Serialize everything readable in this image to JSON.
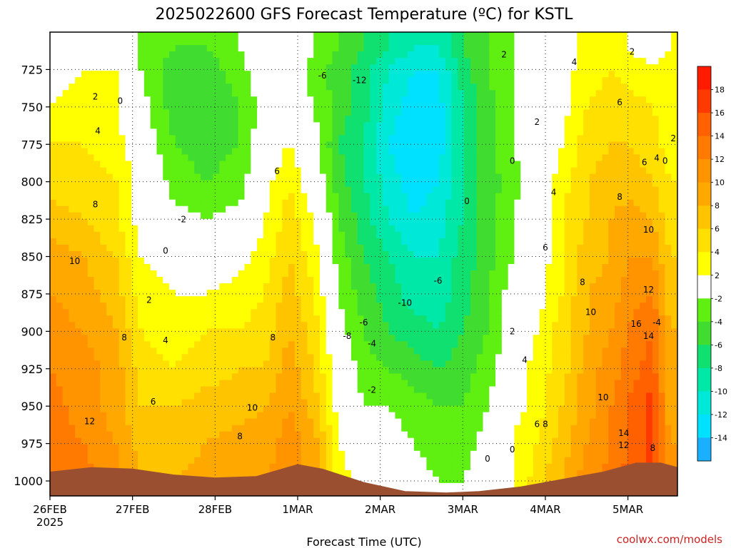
{
  "title": "2025022600 GFS Forecast Temperature (ºC) for KSTL",
  "xlabel": "Forecast Time (UTC)",
  "credit": "coolwx.com/models",
  "chart_data": {
    "type": "heatmap",
    "title": "2025022600 GFS Forecast Temperature (ºC) for KSTL",
    "xlabel": "Forecast Time (UTC)",
    "ylabel": "",
    "x_ticks": [
      "26FEB",
      "27FEB",
      "28FEB",
      "1MAR",
      "2MAR",
      "3MAR",
      "4MAR",
      "5MAR"
    ],
    "x_year_label": "2025",
    "x_range": [
      0,
      7.6
    ],
    "y_ticks": [
      725,
      750,
      775,
      800,
      825,
      850,
      875,
      900,
      925,
      950,
      975,
      1000
    ],
    "y_range": [
      1010,
      700
    ],
    "grid": true,
    "colorbar": {
      "levels": [
        -16,
        -14,
        -12,
        -10,
        -8,
        -6,
        -4,
        -2,
        2,
        4,
        6,
        8,
        10,
        12,
        14,
        16,
        18,
        20
      ],
      "tick_labels": [
        "18",
        "16",
        "14",
        "12",
        "10",
        "8",
        "6",
        "4",
        "2",
        "-2",
        "-4",
        "-6",
        "-8",
        "-10",
        "-12",
        "-14"
      ],
      "colors": [
        "#1ab0ff",
        "#00e0ff",
        "#00e8d8",
        "#00e8a8",
        "#10e070",
        "#40dd30",
        "#5fef10",
        "#ffffff",
        "#ffff00",
        "#ffe000",
        "#ffc400",
        "#ffa800",
        "#ff9400",
        "#ff7a00",
        "#ff6000",
        "#ff3a00",
        "#ff1a00"
      ]
    },
    "times": [
      0,
      0.4,
      0.8,
      1.1,
      1.5,
      1.9,
      2.3,
      2.6,
      2.9,
      3.2,
      3.5,
      3.8,
      4.1,
      4.4,
      4.7,
      5.0,
      5.3,
      5.6,
      5.9,
      6.2,
      6.5,
      6.8,
      7.0,
      7.3,
      7.5
    ],
    "levels": [
      710,
      725,
      750,
      775,
      800,
      825,
      850,
      875,
      900,
      925,
      950,
      975,
      1000
    ],
    "temperature": [
      [
        0,
        1,
        1,
        -2,
        -4,
        -4,
        -2,
        0,
        0,
        -2,
        -4,
        -6,
        -8,
        -10,
        -10,
        -6,
        -4,
        -2,
        0,
        1,
        3,
        3,
        2,
        1,
        2
      ],
      [
        1,
        2,
        2,
        -2,
        -5,
        -5,
        -3,
        0,
        0,
        -3,
        -5,
        -7,
        -10,
        -12,
        -12,
        -7,
        -4,
        -2,
        0,
        1,
        3,
        4,
        3,
        2,
        3
      ],
      [
        2,
        3,
        2,
        -1,
        -5,
        -6,
        -4,
        -1,
        0,
        -2,
        -5,
        -7,
        -11,
        -13,
        -13,
        -8,
        -5,
        -2,
        0,
        1,
        4,
        5,
        5,
        4,
        3
      ],
      [
        4,
        4,
        3,
        0,
        -4,
        -5,
        -4,
        0,
        2,
        -1,
        -6,
        -8,
        -12,
        -14,
        -13,
        -8,
        -5,
        -2,
        0,
        2,
        5,
        6,
        6,
        5,
        3
      ],
      [
        5,
        5,
        4,
        1,
        -3,
        -4,
        -3,
        1,
        4,
        0,
        -5,
        -8,
        -11,
        -13,
        -12,
        -8,
        -5,
        -3,
        0,
        3,
        6,
        7,
        7,
        6,
        4
      ],
      [
        7,
        6,
        4,
        1,
        -1,
        -2,
        -1,
        2,
        5,
        2,
        -4,
        -7,
        -10,
        -12,
        -11,
        -8,
        -5,
        -2,
        0,
        4,
        6,
        8,
        9,
        8,
        5
      ],
      [
        9,
        8,
        6,
        2,
        1,
        0,
        1,
        3,
        6,
        3,
        -3,
        -6,
        -8,
        -10,
        -10,
        -7,
        -5,
        -2,
        0,
        4,
        7,
        8,
        10,
        10,
        6
      ],
      [
        10,
        9,
        7,
        3,
        2,
        2,
        3,
        4,
        7,
        4,
        -2,
        -5,
        -7,
        -9,
        -9,
        -7,
        -4,
        -1,
        1,
        4,
        8,
        9,
        11,
        12,
        7
      ],
      [
        11,
        10,
        8,
        4,
        3,
        4,
        4,
        5,
        8,
        5,
        -1,
        -4,
        -6,
        -7,
        -8,
        -6,
        -4,
        -1,
        2,
        5,
        8,
        10,
        12,
        14,
        8
      ],
      [
        12,
        11,
        9,
        5,
        4,
        5,
        6,
        6,
        9,
        6,
        0,
        -3,
        -4,
        -5,
        -6,
        -5,
        -3,
        0,
        3,
        5,
        9,
        11,
        13,
        15,
        8
      ],
      [
        13,
        11,
        9,
        6,
        6,
        7,
        7,
        8,
        10,
        7,
        1,
        -2,
        -2,
        -3,
        -4,
        -4,
        -2,
        1,
        3,
        6,
        9,
        12,
        14,
        17,
        9
      ],
      [
        13,
        12,
        10,
        7,
        7,
        8,
        9,
        9,
        11,
        9,
        2,
        0,
        -1,
        -2,
        -3,
        -3,
        -1,
        2,
        4,
        7,
        10,
        12,
        14,
        17,
        10
      ],
      [
        14,
        13,
        11,
        8,
        8,
        9,
        10,
        10,
        11,
        9,
        3,
        1,
        0,
        -1,
        -2,
        -2,
        0,
        2,
        5,
        8,
        11,
        13,
        15,
        17,
        11
      ]
    ],
    "surface_pressure": [
      {
        "x": 0.0,
        "p": 994
      },
      {
        "x": 0.5,
        "p": 991
      },
      {
        "x": 1.0,
        "p": 992
      },
      {
        "x": 1.5,
        "p": 996
      },
      {
        "x": 2.0,
        "p": 998
      },
      {
        "x": 2.5,
        "p": 997
      },
      {
        "x": 3.0,
        "p": 989
      },
      {
        "x": 3.3,
        "p": 992
      },
      {
        "x": 3.8,
        "p": 1001
      },
      {
        "x": 4.3,
        "p": 1007
      },
      {
        "x": 4.8,
        "p": 1008
      },
      {
        "x": 5.2,
        "p": 1007
      },
      {
        "x": 5.7,
        "p": 1004
      },
      {
        "x": 6.2,
        "p": 999
      },
      {
        "x": 6.7,
        "p": 994
      },
      {
        "x": 7.1,
        "p": 988
      },
      {
        "x": 7.4,
        "p": 988
      },
      {
        "x": 7.6,
        "p": 991
      }
    ],
    "contour_labels": [
      {
        "text": "2",
        "x": 0.55,
        "p": 745
      },
      {
        "text": "0",
        "x": 0.85,
        "p": 748
      },
      {
        "text": "4",
        "x": 0.58,
        "p": 768
      },
      {
        "text": "8",
        "x": 0.55,
        "p": 817
      },
      {
        "text": "10",
        "x": 0.3,
        "p": 855
      },
      {
        "text": "12",
        "x": 0.48,
        "p": 962
      },
      {
        "text": "8",
        "x": 0.9,
        "p": 906
      },
      {
        "text": "2",
        "x": 1.2,
        "p": 881
      },
      {
        "text": "4",
        "x": 1.4,
        "p": 908
      },
      {
        "text": "6",
        "x": 1.25,
        "p": 949
      },
      {
        "text": "-2",
        "x": 1.6,
        "p": 827
      },
      {
        "text": "0",
        "x": 1.4,
        "p": 848
      },
      {
        "text": "6",
        "x": 2.75,
        "p": 795
      },
      {
        "text": "8",
        "x": 2.7,
        "p": 906
      },
      {
        "text": "10",
        "x": 2.45,
        "p": 953
      },
      {
        "text": "8",
        "x": 2.3,
        "p": 972
      },
      {
        "text": "-6",
        "x": 3.3,
        "p": 731
      },
      {
        "text": "-12",
        "x": 3.75,
        "p": 734
      },
      {
        "text": "-6",
        "x": 3.8,
        "p": 896
      },
      {
        "text": "-8",
        "x": 3.6,
        "p": 905
      },
      {
        "text": "-4",
        "x": 3.9,
        "p": 910
      },
      {
        "text": "-2",
        "x": 3.9,
        "p": 941
      },
      {
        "text": "-10",
        "x": 4.3,
        "p": 883
      },
      {
        "text": "-6",
        "x": 4.7,
        "p": 868
      },
      {
        "text": "2",
        "x": 5.5,
        "p": 717
      },
      {
        "text": "0",
        "x": 5.05,
        "p": 815
      },
      {
        "text": "0",
        "x": 5.6,
        "p": 788
      },
      {
        "text": "2",
        "x": 5.9,
        "p": 762
      },
      {
        "text": "0",
        "x": 5.3,
        "p": 987
      },
      {
        "text": "0",
        "x": 5.6,
        "p": 981
      },
      {
        "text": "4",
        "x": 6.35,
        "p": 722
      },
      {
        "text": "6",
        "x": 6.9,
        "p": 749
      },
      {
        "text": "4",
        "x": 6.1,
        "p": 809
      },
      {
        "text": "6",
        "x": 6.0,
        "p": 846
      },
      {
        "text": "8",
        "x": 6.45,
        "p": 869
      },
      {
        "text": "10",
        "x": 6.55,
        "p": 889
      },
      {
        "text": "8",
        "x": 6.9,
        "p": 812
      },
      {
        "text": "2",
        "x": 5.6,
        "p": 902
      },
      {
        "text": "4",
        "x": 5.75,
        "p": 921
      },
      {
        "text": "6",
        "x": 5.9,
        "p": 964
      },
      {
        "text": "8",
        "x": 6.0,
        "p": 964
      },
      {
        "text": "10",
        "x": 6.7,
        "p": 946
      },
      {
        "text": "14",
        "x": 6.95,
        "p": 970
      },
      {
        "text": "12",
        "x": 6.95,
        "p": 978
      },
      {
        "text": "16",
        "x": 7.1,
        "p": 897
      },
      {
        "text": "14",
        "x": 7.25,
        "p": 905
      },
      {
        "text": "12",
        "x": 7.25,
        "p": 874
      },
      {
        "text": "10",
        "x": 7.25,
        "p": 834
      },
      {
        "text": "6",
        "x": 7.2,
        "p": 789
      },
      {
        "text": "4",
        "x": 7.35,
        "p": 786
      },
      {
        "text": "0",
        "x": 7.45,
        "p": 788
      },
      {
        "text": "2",
        "x": 7.55,
        "p": 773
      },
      {
        "text": "2",
        "x": 7.05,
        "p": 715
      },
      {
        "text": "-4",
        "x": 7.35,
        "p": 896
      },
      {
        "text": "8",
        "x": 7.3,
        "p": 980
      }
    ]
  }
}
